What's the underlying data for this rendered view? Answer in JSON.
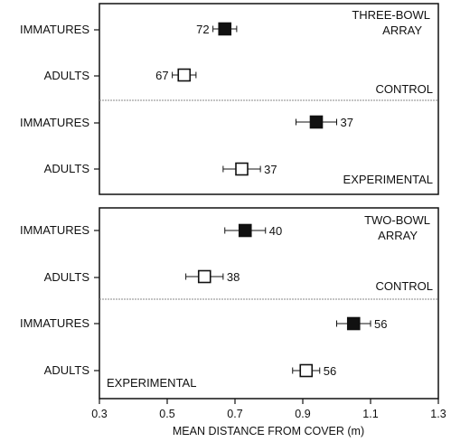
{
  "chart_data": {
    "type": "dot-plot-with-error-bars",
    "xlabel": "MEAN DISTANCE FROM COVER (m)",
    "xlim": [
      0.3,
      1.3
    ],
    "xticks": [
      "0.3",
      "0.5",
      "0.7",
      "0.9",
      "1.1",
      "1.3"
    ],
    "panels": [
      {
        "title_lines": [
          "THREE-BOWL",
          "ARRAY"
        ],
        "groups": [
          {
            "label": "CONTROL",
            "rows": [
              {
                "category": "IMMATURES",
                "mean": 0.67,
                "se": 0.035,
                "n": "72",
                "marker": "filled"
              },
              {
                "category": "ADULTS",
                "mean": 0.55,
                "se": 0.035,
                "n": "67",
                "marker": "open"
              }
            ]
          },
          {
            "label": "EXPERIMENTAL",
            "rows": [
              {
                "category": "IMMATURES",
                "mean": 0.94,
                "se": 0.06,
                "n": "37",
                "marker": "filled"
              },
              {
                "category": "ADULTS",
                "mean": 0.72,
                "se": 0.055,
                "n": "37",
                "marker": "open"
              }
            ]
          }
        ]
      },
      {
        "title_lines": [
          "TWO-BOWL",
          "ARRAY"
        ],
        "groups": [
          {
            "label": "CONTROL",
            "rows": [
              {
                "category": "IMMATURES",
                "mean": 0.73,
                "se": 0.06,
                "n": "40",
                "marker": "filled"
              },
              {
                "category": "ADULTS",
                "mean": 0.61,
                "se": 0.055,
                "n": "38",
                "marker": "open"
              }
            ]
          },
          {
            "label": "EXPERIMENTAL",
            "rows": [
              {
                "category": "IMMATURES",
                "mean": 1.05,
                "se": 0.05,
                "n": "56",
                "marker": "filled"
              },
              {
                "category": "ADULTS",
                "mean": 0.91,
                "se": 0.04,
                "n": "56",
                "marker": "open"
              }
            ]
          }
        ]
      }
    ]
  },
  "colors": {
    "ink": "#111111",
    "background": "#ffffff",
    "divider": "#888888"
  }
}
